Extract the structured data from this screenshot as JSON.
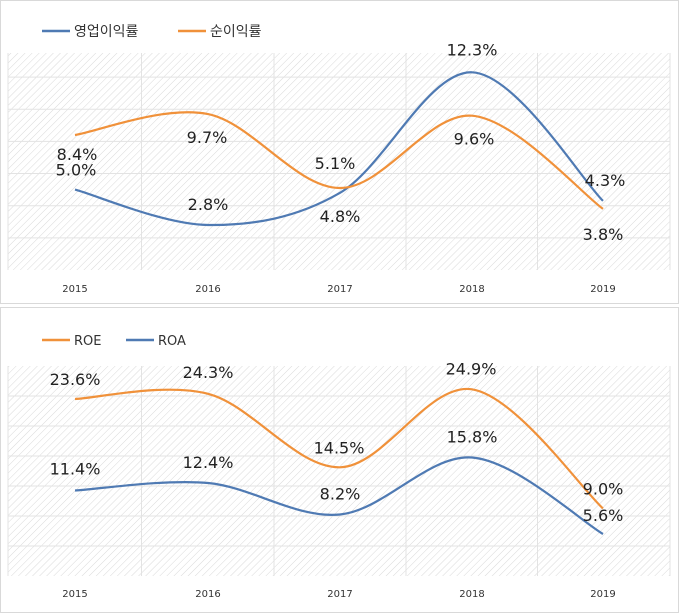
{
  "chart_data": [
    {
      "type": "line",
      "categories": [
        "2015",
        "2016",
        "2017",
        "2018",
        "2019"
      ],
      "series": [
        {
          "name": "영업이익률",
          "values": [
            5.0,
            2.8,
            4.8,
            12.3,
            4.3
          ],
          "labels": [
            "5.0%",
            "2.8%",
            "4.8%",
            "12.3%",
            "4.3%"
          ],
          "color": "#4f7ab3"
        },
        {
          "name": "순이익률",
          "values": [
            8.4,
            9.7,
            5.1,
            9.6,
            3.8
          ],
          "labels": [
            "8.4%",
            "9.7%",
            "5.1%",
            "9.6%",
            "3.8%"
          ],
          "color": "#f0913a"
        }
      ],
      "ylim": [
        0,
        13.5
      ],
      "grid": true,
      "legend": "top-left"
    },
    {
      "type": "line",
      "categories": [
        "2015",
        "2016",
        "2017",
        "2018",
        "2019"
      ],
      "series": [
        {
          "name": "ROE",
          "values": [
            23.6,
            24.3,
            14.5,
            24.9,
            9.0
          ],
          "labels": [
            "23.6%",
            "24.3%",
            "14.5%",
            "24.9%",
            "9.0%"
          ],
          "color": "#f0913a"
        },
        {
          "name": "ROA",
          "values": [
            11.4,
            12.4,
            8.2,
            15.8,
            5.6
          ],
          "labels": [
            "11.4%",
            "12.4%",
            "8.2%",
            "15.8%",
            "5.6%"
          ],
          "color": "#4f7ab3"
        }
      ],
      "ylim": [
        0,
        28
      ],
      "grid": true,
      "legend": "top-left"
    }
  ]
}
